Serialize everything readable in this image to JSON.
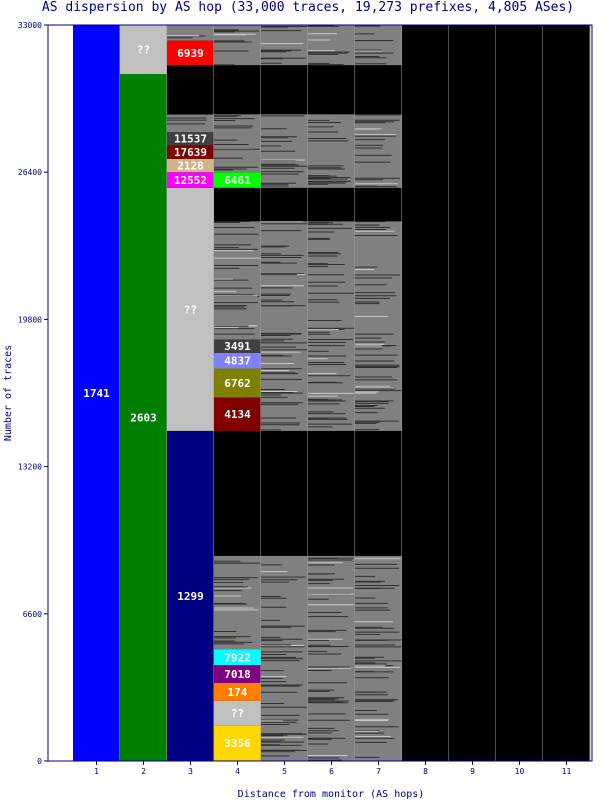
{
  "chart_data": {
    "type": "bar",
    "title": "AS dispersion by AS hop (33,000 traces, 19,273 prefixes, 4,805 ASes)",
    "xlabel": "Distance from monitor (AS hops)",
    "ylabel": "Number of traces",
    "ylim": [
      0,
      33000
    ],
    "y_ticks": [
      "0",
      "6600",
      "13200",
      "19800",
      "26400",
      "33000"
    ],
    "x_ticks": [
      "1",
      "2",
      "3",
      "4",
      "5",
      "6",
      "7",
      "8",
      "9",
      "10",
      "11"
    ],
    "grid": false,
    "legend": "none",
    "colors": {
      "title": "#000080",
      "axis": "#000080",
      "tick_label": "#000080",
      "background": "#000000",
      "unlabeled_segment": "#808080"
    },
    "columns": [
      {
        "hop": 1,
        "segments": [
          {
            "label": "1741",
            "y0": 0,
            "y1": 33000,
            "color": "#0000ff"
          }
        ]
      },
      {
        "hop": 2,
        "segments": [
          {
            "label": "2603",
            "y0": 0,
            "y1": 30800,
            "color": "#008000"
          },
          {
            "label": "??",
            "y0": 30800,
            "y1": 33000,
            "color": "#c0c0c0"
          }
        ]
      },
      {
        "hop": 3,
        "segments": [
          {
            "label": "1299",
            "y0": 0,
            "y1": 14800,
            "color": "#000080"
          },
          {
            "label": "??",
            "y0": 14800,
            "y1": 25700,
            "color": "#c0c0c0"
          },
          {
            "label": "12552",
            "y0": 25700,
            "y1": 26400,
            "color": "#ff00ff"
          },
          {
            "label": "2128",
            "y0": 26400,
            "y1": 27000,
            "color": "#d2b48c"
          },
          {
            "label": "17639",
            "y0": 27000,
            "y1": 27600,
            "color": "#800000"
          },
          {
            "label": "11537",
            "y0": 27600,
            "y1": 28200,
            "color": "#404040"
          },
          {
            "label": "",
            "y0": 28200,
            "y1": 29000,
            "color": "#808080"
          },
          {
            "label": "",
            "y0": 29000,
            "y1": 31200,
            "color": "#000000"
          },
          {
            "label": "6939",
            "y0": 31200,
            "y1": 32300,
            "color": "#ff0000"
          },
          {
            "label": "",
            "y0": 32300,
            "y1": 33000,
            "color": "#808080"
          }
        ]
      },
      {
        "hop": 4,
        "segments": [
          {
            "label": "3356",
            "y0": 0,
            "y1": 1600,
            "color": "#ffd700"
          },
          {
            "label": "??",
            "y0": 1600,
            "y1": 2700,
            "color": "#c0c0c0"
          },
          {
            "label": "174",
            "y0": 2700,
            "y1": 3500,
            "color": "#ff8000"
          },
          {
            "label": "7018",
            "y0": 3500,
            "y1": 4300,
            "color": "#800080"
          },
          {
            "label": "7922",
            "y0": 4300,
            "y1": 5000,
            "color": "#00ffff"
          },
          {
            "label": "",
            "y0": 5000,
            "y1": 9200,
            "color": "#808080"
          },
          {
            "label": "",
            "y0": 9200,
            "y1": 14800,
            "color": "#000000"
          },
          {
            "label": "4134",
            "y0": 14800,
            "y1": 16300,
            "color": "#800000"
          },
          {
            "label": "6762",
            "y0": 16300,
            "y1": 17600,
            "color": "#808000"
          },
          {
            "label": "4837",
            "y0": 17600,
            "y1": 18300,
            "color": "#8080ff"
          },
          {
            "label": "3491",
            "y0": 18300,
            "y1": 18900,
            "color": "#404040"
          },
          {
            "label": "",
            "y0": 18900,
            "y1": 24200,
            "color": "#808080"
          },
          {
            "label": "",
            "y0": 24200,
            "y1": 25700,
            "color": "#000000"
          },
          {
            "label": "6461",
            "y0": 25700,
            "y1": 26400,
            "color": "#00ff00"
          },
          {
            "label": "",
            "y0": 26400,
            "y1": 29000,
            "color": "#808080"
          },
          {
            "label": "",
            "y0": 29000,
            "y1": 31200,
            "color": "#000000"
          },
          {
            "label": "",
            "y0": 31200,
            "y1": 33000,
            "color": "#808080"
          }
        ]
      },
      {
        "hop": 5,
        "segments": [
          {
            "label": "",
            "y0": 0,
            "y1": 9200,
            "color": "#808080"
          },
          {
            "label": "",
            "y0": 9200,
            "y1": 14800,
            "color": "#000000"
          },
          {
            "label": "",
            "y0": 14800,
            "y1": 24200,
            "color": "#808080"
          },
          {
            "label": "",
            "y0": 24200,
            "y1": 25700,
            "color": "#000000"
          },
          {
            "label": "",
            "y0": 25700,
            "y1": 29000,
            "color": "#808080"
          },
          {
            "label": "",
            "y0": 29000,
            "y1": 31200,
            "color": "#000000"
          },
          {
            "label": "",
            "y0": 31200,
            "y1": 33000,
            "color": "#808080"
          }
        ]
      },
      {
        "hop": 6,
        "segments": [
          {
            "label": "",
            "y0": 0,
            "y1": 9200,
            "color": "#808080"
          },
          {
            "label": "",
            "y0": 9200,
            "y1": 14800,
            "color": "#000000"
          },
          {
            "label": "",
            "y0": 14800,
            "y1": 24200,
            "color": "#808080"
          },
          {
            "label": "",
            "y0": 24200,
            "y1": 25700,
            "color": "#000000"
          },
          {
            "label": "",
            "y0": 25700,
            "y1": 29000,
            "color": "#808080"
          },
          {
            "label": "",
            "y0": 29000,
            "y1": 31200,
            "color": "#000000"
          },
          {
            "label": "",
            "y0": 31200,
            "y1": 33000,
            "color": "#808080"
          }
        ]
      },
      {
        "hop": 7,
        "segments": [
          {
            "label": "",
            "y0": 0,
            "y1": 9200,
            "color": "#808080"
          },
          {
            "label": "",
            "y0": 9200,
            "y1": 14800,
            "color": "#000000"
          },
          {
            "label": "",
            "y0": 14800,
            "y1": 24200,
            "color": "#808080"
          },
          {
            "label": "",
            "y0": 24200,
            "y1": 25700,
            "color": "#000000"
          },
          {
            "label": "",
            "y0": 25700,
            "y1": 29000,
            "color": "#808080"
          },
          {
            "label": "",
            "y0": 29000,
            "y1": 31200,
            "color": "#000000"
          },
          {
            "label": "",
            "y0": 31200,
            "y1": 33000,
            "color": "#808080"
          }
        ]
      },
      {
        "hop": 8,
        "segments": [
          {
            "label": "",
            "y0": 0,
            "y1": 9200,
            "color": "#000000"
          },
          {
            "label": "",
            "y0": 9200,
            "y1": 14800,
            "color": "#000000"
          },
          {
            "label": "",
            "y0": 14800,
            "y1": 24200,
            "color": "#000000"
          },
          {
            "label": "",
            "y0": 24200,
            "y1": 25700,
            "color": "#000000"
          },
          {
            "label": "",
            "y0": 25700,
            "y1": 29000,
            "color": "#000000"
          },
          {
            "label": "",
            "y0": 29000,
            "y1": 31200,
            "color": "#000000"
          },
          {
            "label": "",
            "y0": 31200,
            "y1": 33000,
            "color": "#000000"
          }
        ]
      },
      {
        "hop": 9,
        "segments": [
          {
            "label": "",
            "y0": 0,
            "y1": 33000,
            "color": "#000000"
          }
        ]
      },
      {
        "hop": 10,
        "segments": [
          {
            "label": "",
            "y0": 0,
            "y1": 33000,
            "color": "#000000"
          }
        ]
      },
      {
        "hop": 11,
        "segments": [
          {
            "label": "",
            "y0": 0,
            "y1": 33000,
            "color": "#000000"
          }
        ]
      }
    ]
  }
}
